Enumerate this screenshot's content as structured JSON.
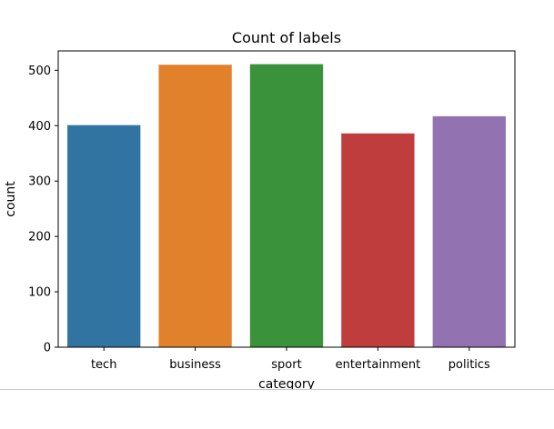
{
  "chart_data": {
    "type": "bar",
    "title": "Count of labels",
    "xlabel": "category",
    "ylabel": "count",
    "categories": [
      "tech",
      "business",
      "sport",
      "entertainment",
      "politics"
    ],
    "values": [
      401,
      510,
      511,
      386,
      417
    ],
    "colors": [
      "#3274a1",
      "#e1812c",
      "#3a923a",
      "#c03d3e",
      "#9372b2"
    ],
    "ylim": [
      0,
      535
    ],
    "yticks": [
      0,
      100,
      200,
      300,
      400,
      500
    ],
    "ytick_labels": [
      "0",
      "100",
      "200",
      "300",
      "400",
      "500"
    ],
    "grid": false,
    "legend": "none"
  }
}
